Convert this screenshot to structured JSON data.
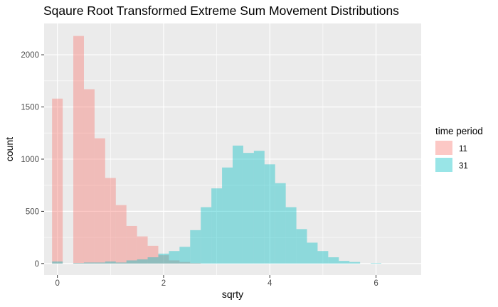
{
  "chart_data": {
    "type": "histogram",
    "title": "Sqaure Root Transformed Extreme Sum Movement Distributions",
    "xlabel": "sqrty",
    "ylabel": "count",
    "xlim": [
      -0.25,
      6.85
    ],
    "ylim": [
      -110,
      2300
    ],
    "x_ticks": [
      0,
      2,
      4,
      6
    ],
    "x_tick_labels": [
      "0",
      "2",
      "4",
      "6"
    ],
    "y_ticks": [
      0,
      500,
      1000,
      1500,
      2000
    ],
    "y_tick_labels": [
      "0",
      "500",
      "1000",
      "1500",
      "2000"
    ],
    "bin_width": 0.2,
    "bin_centers": [
      0.0,
      0.2,
      0.4,
      0.6,
      0.8,
      1.0,
      1.2,
      1.4,
      1.6,
      1.8,
      2.0,
      2.2,
      2.4,
      2.6,
      2.8,
      3.0,
      3.2,
      3.4,
      3.6,
      3.8,
      4.0,
      4.2,
      4.4,
      4.6,
      4.8,
      5.0,
      5.2,
      5.4,
      5.6,
      5.8,
      6.0,
      6.2,
      6.4
    ],
    "grid": true,
    "legend": {
      "title": "time period",
      "position": "right"
    },
    "series": [
      {
        "name": "11",
        "color": "#F8766D",
        "values": [
          1580,
          0,
          2180,
          1670,
          1200,
          820,
          560,
          360,
          260,
          170,
          80,
          30,
          15,
          5,
          0,
          0,
          0,
          0,
          0,
          0,
          0,
          0,
          0,
          0,
          0,
          0,
          0,
          0,
          0,
          0,
          0,
          0,
          0
        ]
      },
      {
        "name": "31",
        "color": "#00BFC4",
        "values": [
          20,
          0,
          5,
          10,
          10,
          20,
          10,
          30,
          40,
          60,
          95,
          120,
          160,
          320,
          540,
          720,
          920,
          1130,
          1060,
          1080,
          950,
          770,
          540,
          330,
          200,
          120,
          60,
          25,
          15,
          0,
          5,
          0,
          0
        ]
      }
    ]
  }
}
